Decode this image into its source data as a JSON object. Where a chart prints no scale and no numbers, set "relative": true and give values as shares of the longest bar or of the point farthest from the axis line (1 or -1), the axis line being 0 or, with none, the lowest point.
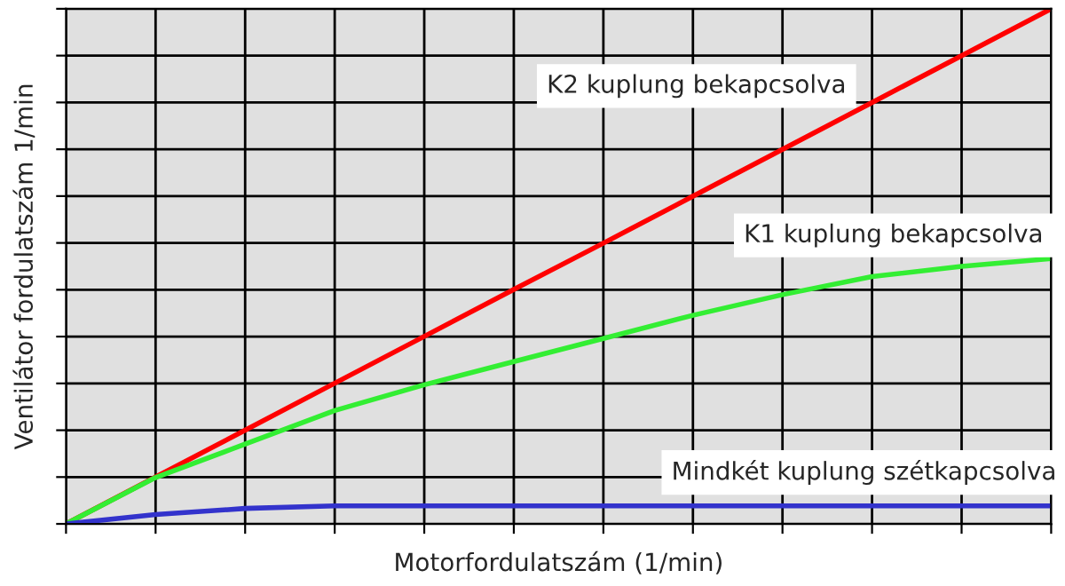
{
  "chart_data": {
    "type": "line",
    "relative": true,
    "xlabel": "Motorfordulatszám (1/min)",
    "ylabel": "Ventilátor fordulatszám 1/min",
    "categories": [
      null,
      null,
      null,
      null,
      null,
      null,
      null,
      null,
      null,
      null,
      null,
      null
    ],
    "series": [
      {
        "name": "K2 kuplung bekapcsolva",
        "color": "#ff0000",
        "values": [
          0,
          0.091,
          0.182,
          0.273,
          0.364,
          0.455,
          0.545,
          0.636,
          0.727,
          0.818,
          0.909,
          1
        ]
      },
      {
        "name": "K1 kuplung bekapcsolva",
        "color": "#33ee33",
        "values": [
          0,
          0.09,
          0.155,
          0.22,
          0.27,
          0.315,
          0.36,
          0.405,
          0.445,
          0.48,
          0.5,
          0.515
        ]
      },
      {
        "name": "Mindkét kuplung szétkapcsolva",
        "color": "#3333cc",
        "values": [
          0,
          0.018,
          0.03,
          0.035,
          0.035,
          0.035,
          0.035,
          0.035,
          0.035,
          0.035,
          0.035,
          0.035
        ]
      }
    ],
    "grid": true,
    "legend": false,
    "marker": "none",
    "line_style": "solid"
  }
}
